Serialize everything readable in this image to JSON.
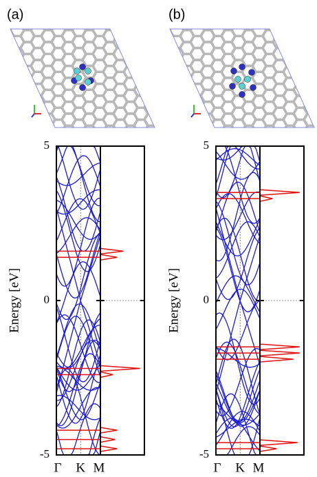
{
  "chart_data": [
    {
      "type": "band_dos",
      "panel_label": "(a)",
      "ylabel": "Energy [eV]",
      "ylim": [
        -5,
        5
      ],
      "yticks": [
        -5,
        0,
        5
      ],
      "categories": [
        "Γ",
        "K",
        "M"
      ],
      "dos_peaks": {
        "energy": [
          1.6,
          1.4,
          -2.2,
          -2.4,
          -4.2,
          -4.5,
          -4.8
        ],
        "intensity": [
          0.55,
          0.4,
          0.95,
          0.3,
          0.4,
          0.35,
          0.4
        ]
      },
      "band_color": "#1a1ad6",
      "dos_color": "#e01010"
    },
    {
      "type": "band_dos",
      "panel_label": "(b)",
      "ylabel": "Energy [eV]",
      "ylim": [
        -5,
        5
      ],
      "yticks": [
        -5,
        0,
        5
      ],
      "categories": [
        "Γ",
        "K",
        "M"
      ],
      "dos_peaks": {
        "energy": [
          3.5,
          3.3,
          -1.5,
          -1.7,
          -1.9,
          -4.6,
          -4.8
        ],
        "intensity": [
          0.95,
          0.3,
          0.95,
          0.95,
          0.8,
          0.9,
          0.4
        ]
      },
      "band_color": "#1a1ad6",
      "dos_color": "#e01010"
    }
  ]
}
